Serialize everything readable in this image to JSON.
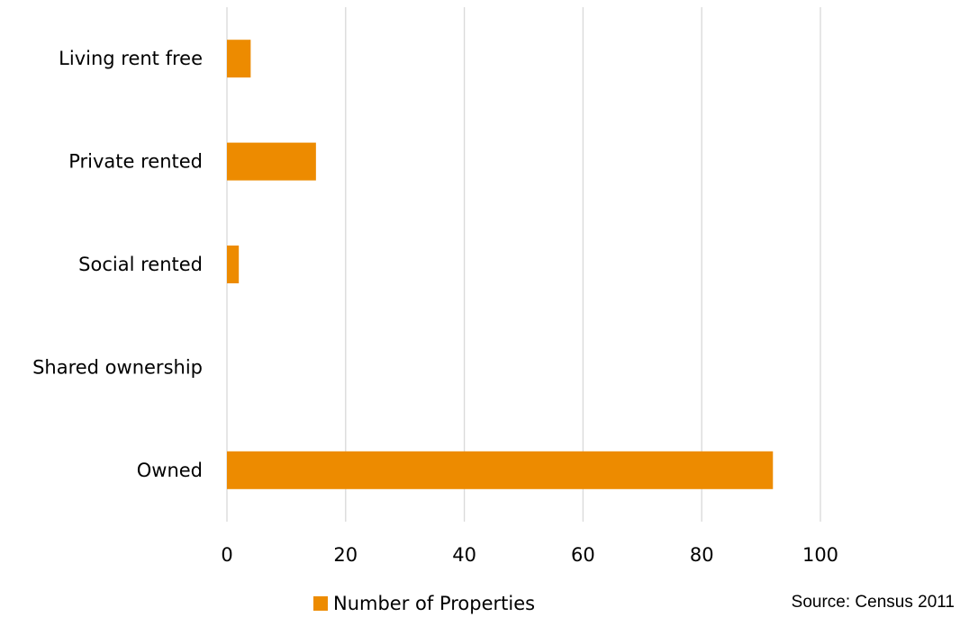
{
  "chart_data": {
    "type": "bar",
    "orientation": "horizontal",
    "title": "",
    "xlabel": "",
    "ylabel": "",
    "categories": [
      "Owned",
      "Shared ownership",
      "Social rented",
      "Private rented",
      "Living rent free"
    ],
    "series": [
      {
        "name": "Number of Properties",
        "values": [
          92,
          0,
          2,
          15,
          4
        ],
        "color": "#ED8B00"
      }
    ],
    "xlim": [
      0,
      100
    ],
    "xticks": [
      0,
      20,
      40,
      60,
      80,
      100
    ],
    "grid": "vertical",
    "gridline_color": "#D9D9D9",
    "legend_position": "bottom"
  },
  "source_note": "Source: Census 2011"
}
